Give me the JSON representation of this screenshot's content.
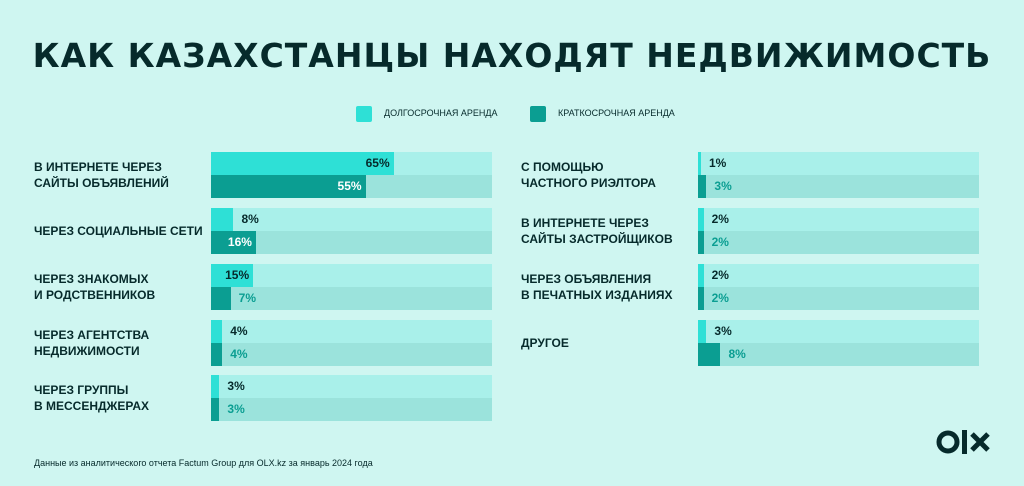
{
  "title": "КАК КАЗАХСТАНЦЫ НАХОДЯТ НЕДВИЖИМОСТЬ",
  "colors": {
    "background": "#CFF6F1",
    "long_term": "#2EE0D6",
    "short_term": "#0B9E92",
    "track_long": "#A9F0EA",
    "track_short": "#9BE3DC",
    "text_dark": "#062A2B"
  },
  "legend": {
    "long_term": "ДОЛГОСРОЧНАЯ АРЕНДА",
    "short_term": "КРАТКОСРОЧНАЯ АРЕНДА"
  },
  "footnote": "Данные из аналитического отчета Factum Group для OLX.kz за январь 2024 года",
  "logo": {
    "text": "OLX",
    "icon": "olx-logo-icon"
  },
  "chart_data": {
    "type": "bar",
    "orientation": "horizontal",
    "title": "КАК КАЗАХСТАНЦЫ НАХОДЯТ НЕДВИЖИМОСТЬ",
    "unit": "%",
    "xlim": [
      0,
      100
    ],
    "series_names": [
      "ДОЛГОСРОЧНАЯ АРЕНДА",
      "КРАТКОСРОЧНАЯ АРЕНДА"
    ],
    "categories": [
      {
        "label": "В ИНТЕРНЕТЕ ЧЕРЕЗ\nСАЙТЫ ОБЪЯВЛЕНИЙ",
        "long": 65,
        "short": 55,
        "long_label": "65%",
        "short_label": "55%"
      },
      {
        "label": "ЧЕРЕЗ СОЦИАЛЬНЫЕ СЕТИ",
        "long": 8,
        "short": 16,
        "long_label": "8%",
        "short_label": "16%"
      },
      {
        "label": "ЧЕРЕЗ ЗНАКОМЫХ\nИ РОДСТВЕННИКОВ",
        "long": 15,
        "short": 7,
        "long_label": "15%",
        "short_label": "7%"
      },
      {
        "label": "ЧЕРЕЗ АГЕНТСТВА\nНЕДВИЖИМОСТИ",
        "long": 4,
        "short": 4,
        "long_label": "4%",
        "short_label": "4%"
      },
      {
        "label": "ЧЕРЕЗ ГРУППЫ\nВ МЕССЕНДЖЕРАХ",
        "long": 3,
        "short": 3,
        "long_label": "3%",
        "short_label": "3%"
      },
      {
        "label": "С ПОМОЩЬЮ\nЧАСТНОГО РИЭЛТОРА",
        "long": 1,
        "short": 3,
        "long_label": "1%",
        "short_label": "3%"
      },
      {
        "label": "В ИНТЕРНЕТЕ ЧЕРЕЗ\nСАЙТЫ ЗАСТРОЙЩИКОВ",
        "long": 2,
        "short": 2,
        "long_label": "2%",
        "short_label": "2%"
      },
      {
        "label": "ЧЕРЕЗ ОБЪЯВЛЕНИЯ\nВ ПЕЧАТНЫХ ИЗДАНИЯХ",
        "long": 2,
        "short": 2,
        "long_label": "2%",
        "short_label": "2%"
      },
      {
        "label": "ДРУГОЕ",
        "long": 3,
        "short": 8,
        "long_label": "3%",
        "short_label": "8%"
      }
    ]
  }
}
